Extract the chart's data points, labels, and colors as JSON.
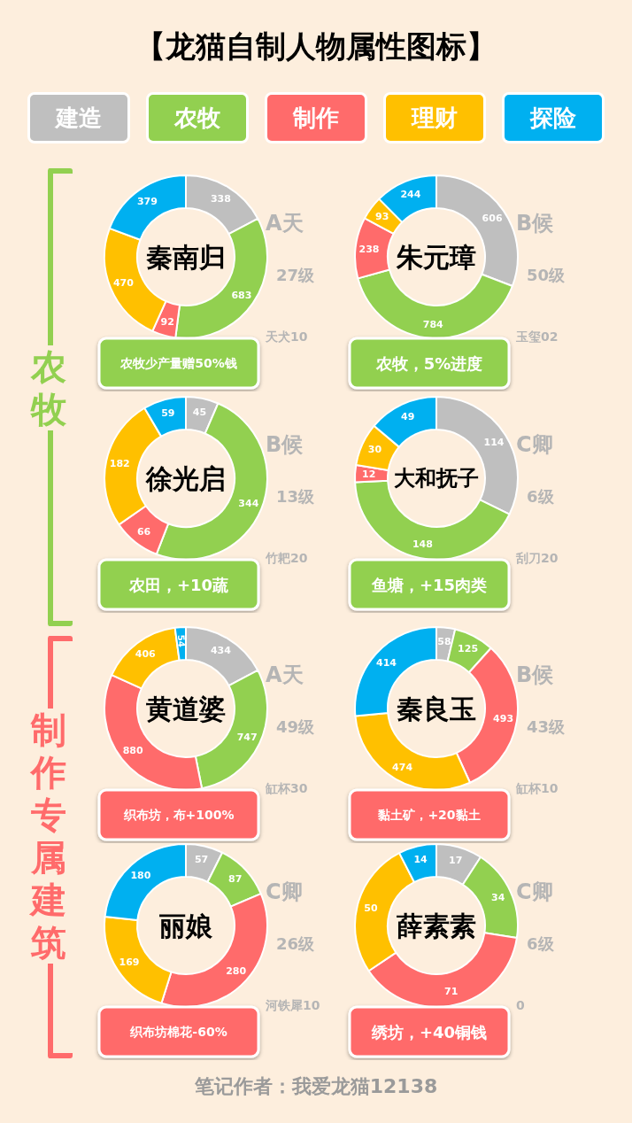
{
  "chart_data": [
    {
      "type": "other",
      "title": "【龙猫自制人物属性图标】",
      "annotations": [
        "农牧",
        "制作专属建筑",
        "笔记作者：我爱龙猫12138"
      ]
    },
    {
      "type": "donut",
      "title": "秦南归",
      "categories": [
        "建造",
        "农牧",
        "制作",
        "理财",
        "探险"
      ],
      "values": [
        338,
        683,
        92,
        470,
        379
      ],
      "colors": [
        "#bfbfbf",
        "#92d050",
        "#ff6b6b",
        "#ffc000",
        "#00b0f0"
      ],
      "data_labels": true,
      "legend": "top",
      "annotations": [
        "A天",
        "27级",
        "天犬10",
        "农牧少产量赠50%钱"
      ]
    },
    {
      "type": "donut",
      "title": "朱元璋",
      "categories": [
        null,
        null,
        null,
        null,
        null
      ],
      "values": [
        606,
        784,
        238,
        93,
        244
      ],
      "colors": [
        "#bfbfbf",
        "#92d050",
        "#ff6b6b",
        "#ffc000",
        "#00b0f0"
      ],
      "data_labels": true,
      "annotations": [
        "B候",
        "50级",
        "玉玺02",
        "农牧，5%进度"
      ]
    },
    {
      "type": "donut",
      "title": "徐光启",
      "categories": [
        null,
        null,
        null,
        null,
        null
      ],
      "values": [
        45,
        344,
        66,
        182,
        59
      ],
      "colors": [
        "#bfbfbf",
        "#92d050",
        "#ff6b6b",
        "#ffc000",
        "#00b0f0"
      ],
      "data_labels": true,
      "annotations": [
        "B候",
        "13级",
        "竹耙20",
        "农田，+10蔬"
      ]
    },
    {
      "type": "donut",
      "title": "大和抚子",
      "categories": [
        null,
        null,
        null,
        null,
        null
      ],
      "values": [
        114,
        148,
        12,
        30,
        49
      ],
      "colors": [
        "#bfbfbf",
        "#92d050",
        "#ff6b6b",
        "#ffc000",
        "#00b0f0"
      ],
      "data_labels": true,
      "annotations": [
        "C卿",
        "6级",
        "刮刀20",
        "鱼塘，+15肉类"
      ]
    },
    {
      "type": "donut",
      "title": "黄道婆",
      "categories": [
        null,
        null,
        null,
        null,
        null
      ],
      "values": [
        434,
        747,
        880,
        406,
        54
      ],
      "colors": [
        "#bfbfbf",
        "#92d050",
        "#ff6b6b",
        "#ffc000",
        "#00b0f0"
      ],
      "data_labels": true,
      "annotations": [
        "A天",
        "49级",
        "缸杯30",
        "织布坊，布+100%"
      ]
    },
    {
      "type": "donut",
      "title": "秦良玉",
      "categories": [
        null,
        null,
        null,
        null,
        null
      ],
      "values": [
        58,
        125,
        493,
        474,
        414
      ],
      "colors": [
        "#bfbfbf",
        "#92d050",
        "#ff6b6b",
        "#ffc000",
        "#00b0f0"
      ],
      "data_labels": true,
      "annotations": [
        "B候",
        "43级",
        "缸杯10",
        "黏土矿，+20黏土"
      ]
    },
    {
      "type": "donut",
      "title": "丽娘",
      "categories": [
        null,
        null,
        null,
        null,
        null
      ],
      "values": [
        57,
        87,
        280,
        169,
        180
      ],
      "colors": [
        "#bfbfbf",
        "#92d050",
        "#ff6b6b",
        "#ffc000",
        "#00b0f0"
      ],
      "data_labels": true,
      "annotations": [
        "C卿",
        "26级",
        "河铁犀10",
        "织布坊棉花-60%"
      ]
    },
    {
      "type": "donut",
      "title": "薛素素",
      "categories": [
        null,
        null,
        null,
        null,
        null
      ],
      "values": [
        17,
        34,
        71,
        50,
        14
      ],
      "colors": [
        "#bfbfbf",
        "#92d050",
        "#ff6b6b",
        "#ffc000",
        "#00b0f0"
      ],
      "data_labels": true,
      "annotations": [
        "C卿",
        "6级",
        "0",
        "绣坊，+40铜钱"
      ]
    }
  ]
}
